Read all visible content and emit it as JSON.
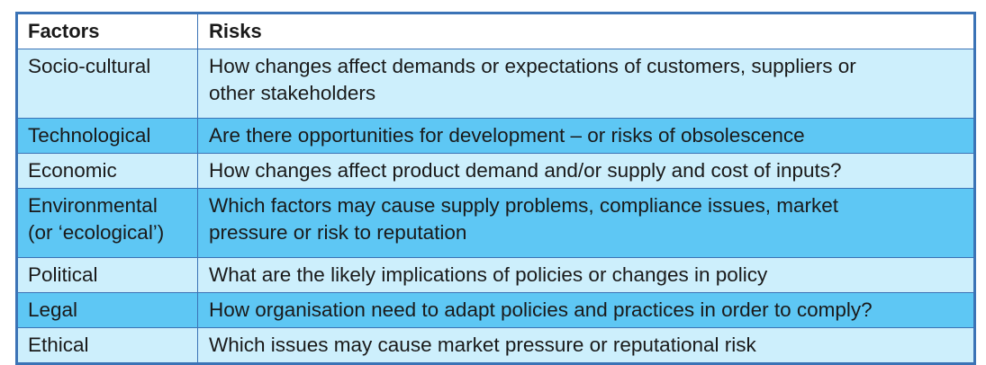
{
  "table": {
    "headers": [
      "Factors",
      "Risks"
    ],
    "rows": [
      {
        "factor": "Socio-cultural",
        "factor2": "",
        "risk": "How changes affect demands or expectations of customers, suppliers or",
        "risk2": "other stakeholders",
        "shade": "light"
      },
      {
        "factor": "Technological",
        "factor2": "",
        "risk": "Are there opportunities for development – or risks of obsolescence",
        "risk2": "",
        "shade": "dark"
      },
      {
        "factor": "Economic",
        "factor2": "",
        "risk": "How changes affect product demand and/or supply and cost of inputs?",
        "risk2": "",
        "shade": "light"
      },
      {
        "factor": "Environmental",
        "factor2": "(or ‘ecological’)",
        "risk": "Which factors may cause supply problems, compliance issues, market",
        "risk2": "pressure or risk to reputation",
        "shade": "dark"
      },
      {
        "factor": "Political",
        "factor2": "",
        "risk": "What are the likely implications of policies or changes in policy",
        "risk2": "",
        "shade": "light"
      },
      {
        "factor": "Legal",
        "factor2": "",
        "risk": "How organisation need to adapt policies and practices in order to comply?",
        "risk2": "",
        "shade": "dark"
      },
      {
        "factor": "Ethical",
        "factor2": "",
        "risk": "Which issues may cause market pressure or reputational risk",
        "risk2": "",
        "shade": "light"
      }
    ]
  },
  "colors": {
    "border": "#3b73b6",
    "row_light": "#cdeffc",
    "row_dark": "#5ec7f4",
    "header_bg": "#ffffff"
  }
}
